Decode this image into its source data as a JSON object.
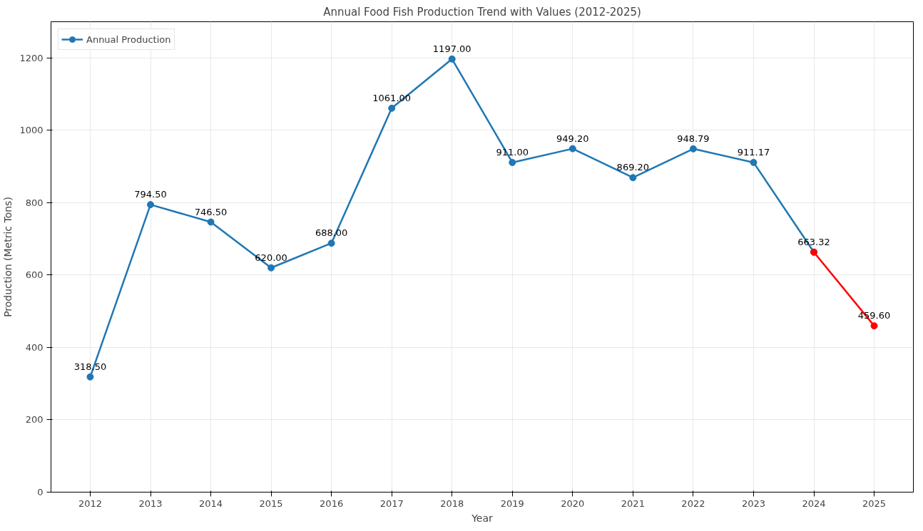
{
  "chart_data": {
    "type": "line",
    "title": "Annual Food Fish Production Trend with Values (2012-2025)",
    "xlabel": "Year",
    "ylabel": "Production (Metric Tons)",
    "series": [
      {
        "name": "Annual Production",
        "color": "#1f77b4",
        "x": [
          2012,
          2013,
          2014,
          2015,
          2016,
          2017,
          2018,
          2019,
          2020,
          2021,
          2022,
          2023,
          2024
        ],
        "values": [
          318.5,
          794.5,
          746.5,
          620.0,
          688.0,
          1061.0,
          1197.0,
          911.0,
          949.2,
          869.2,
          948.79,
          911.17,
          663.32
        ],
        "value_labels": [
          "318.50",
          "794.50",
          "746.50",
          "620.00",
          "688.00",
          "1061.00",
          "1197.00",
          "911.00",
          "949.20",
          "869.20",
          "948.79",
          "911.17",
          "663.32"
        ]
      },
      {
        "color": "#ff0000",
        "x": [
          2024,
          2025
        ],
        "values": [
          663.32,
          459.6
        ],
        "value_labels": [
          null,
          "459.60"
        ]
      }
    ],
    "xlim": [
      2011.35,
      2025.65
    ],
    "xticks": [
      2012,
      2013,
      2014,
      2015,
      2016,
      2017,
      2018,
      2019,
      2020,
      2021,
      2022,
      2023,
      2024,
      2025
    ],
    "ylim": [
      0,
      1300
    ],
    "yticks": [
      0,
      200,
      400,
      600,
      800,
      1000,
      1200
    ],
    "grid": true,
    "legend": "top left",
    "marker": "circle",
    "line_style": "solid"
  }
}
